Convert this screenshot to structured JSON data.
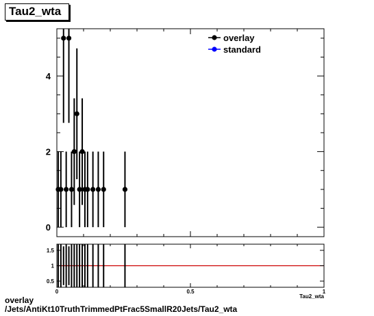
{
  "chart_data": [
    {
      "type": "scatter",
      "title": "Tau2_wta",
      "xlabel": "Tau2_wta",
      "xlim": [
        0,
        1
      ],
      "ylim": [
        -0.25,
        5.25
      ],
      "yticks": [
        0,
        2,
        4
      ],
      "legend": {
        "placement": "top-right",
        "entries": [
          {
            "name": "overlay",
            "color": "#000000"
          },
          {
            "name": "standard",
            "color": "#0000ff"
          }
        ]
      },
      "series": [
        {
          "name": "overlay",
          "color": "#000000",
          "x": [
            0.005,
            0.015,
            0.025,
            0.035,
            0.045,
            0.055,
            0.065,
            0.075,
            0.085,
            0.095,
            0.105,
            0.115,
            0.135,
            0.155,
            0.175,
            0.255
          ],
          "y": [
            1,
            1,
            5,
            1,
            5,
            1,
            2,
            3,
            1,
            2,
            1,
            1,
            1,
            1,
            1,
            1
          ],
          "err": [
            1,
            1,
            2.24,
            1,
            2.24,
            1,
            1.41,
            1.73,
            1,
            1.41,
            1,
            1,
            1,
            1,
            1,
            1
          ]
        }
      ]
    },
    {
      "type": "scatter",
      "title": "",
      "xlabel": "Tau2_wta",
      "xlim": [
        0,
        1
      ],
      "ylim": [
        0.3,
        1.7
      ],
      "yticks": [
        0.5,
        1,
        1.5
      ],
      "xticks": [
        0,
        0.5,
        1
      ],
      "reference_line": {
        "y": 1,
        "color": "#cc0000"
      },
      "series": [
        {
          "name": "ratio",
          "color": "#000000",
          "x": [
            0.005,
            0.015,
            0.025,
            0.035,
            0.045,
            0.055,
            0.065,
            0.075,
            0.085,
            0.095,
            0.105,
            0.115,
            0.135,
            0.155,
            0.175,
            0.255
          ],
          "y": [
            1,
            1,
            1,
            1,
            1,
            1,
            1,
            1,
            1,
            1,
            1,
            1,
            1,
            1,
            1,
            1
          ],
          "err": [
            1.41,
            1.41,
            0.63,
            1.41,
            0.63,
            1.41,
            1.0,
            0.82,
            1.41,
            1.0,
            1.41,
            1.41,
            1.41,
            1.41,
            1.41,
            1.41
          ]
        }
      ]
    }
  ],
  "footer": {
    "line1": "overlay",
    "line2": "/Jets/AntiKt10TruthTrimmedPtFrac5SmallR20Jets/Tau2_wta"
  }
}
